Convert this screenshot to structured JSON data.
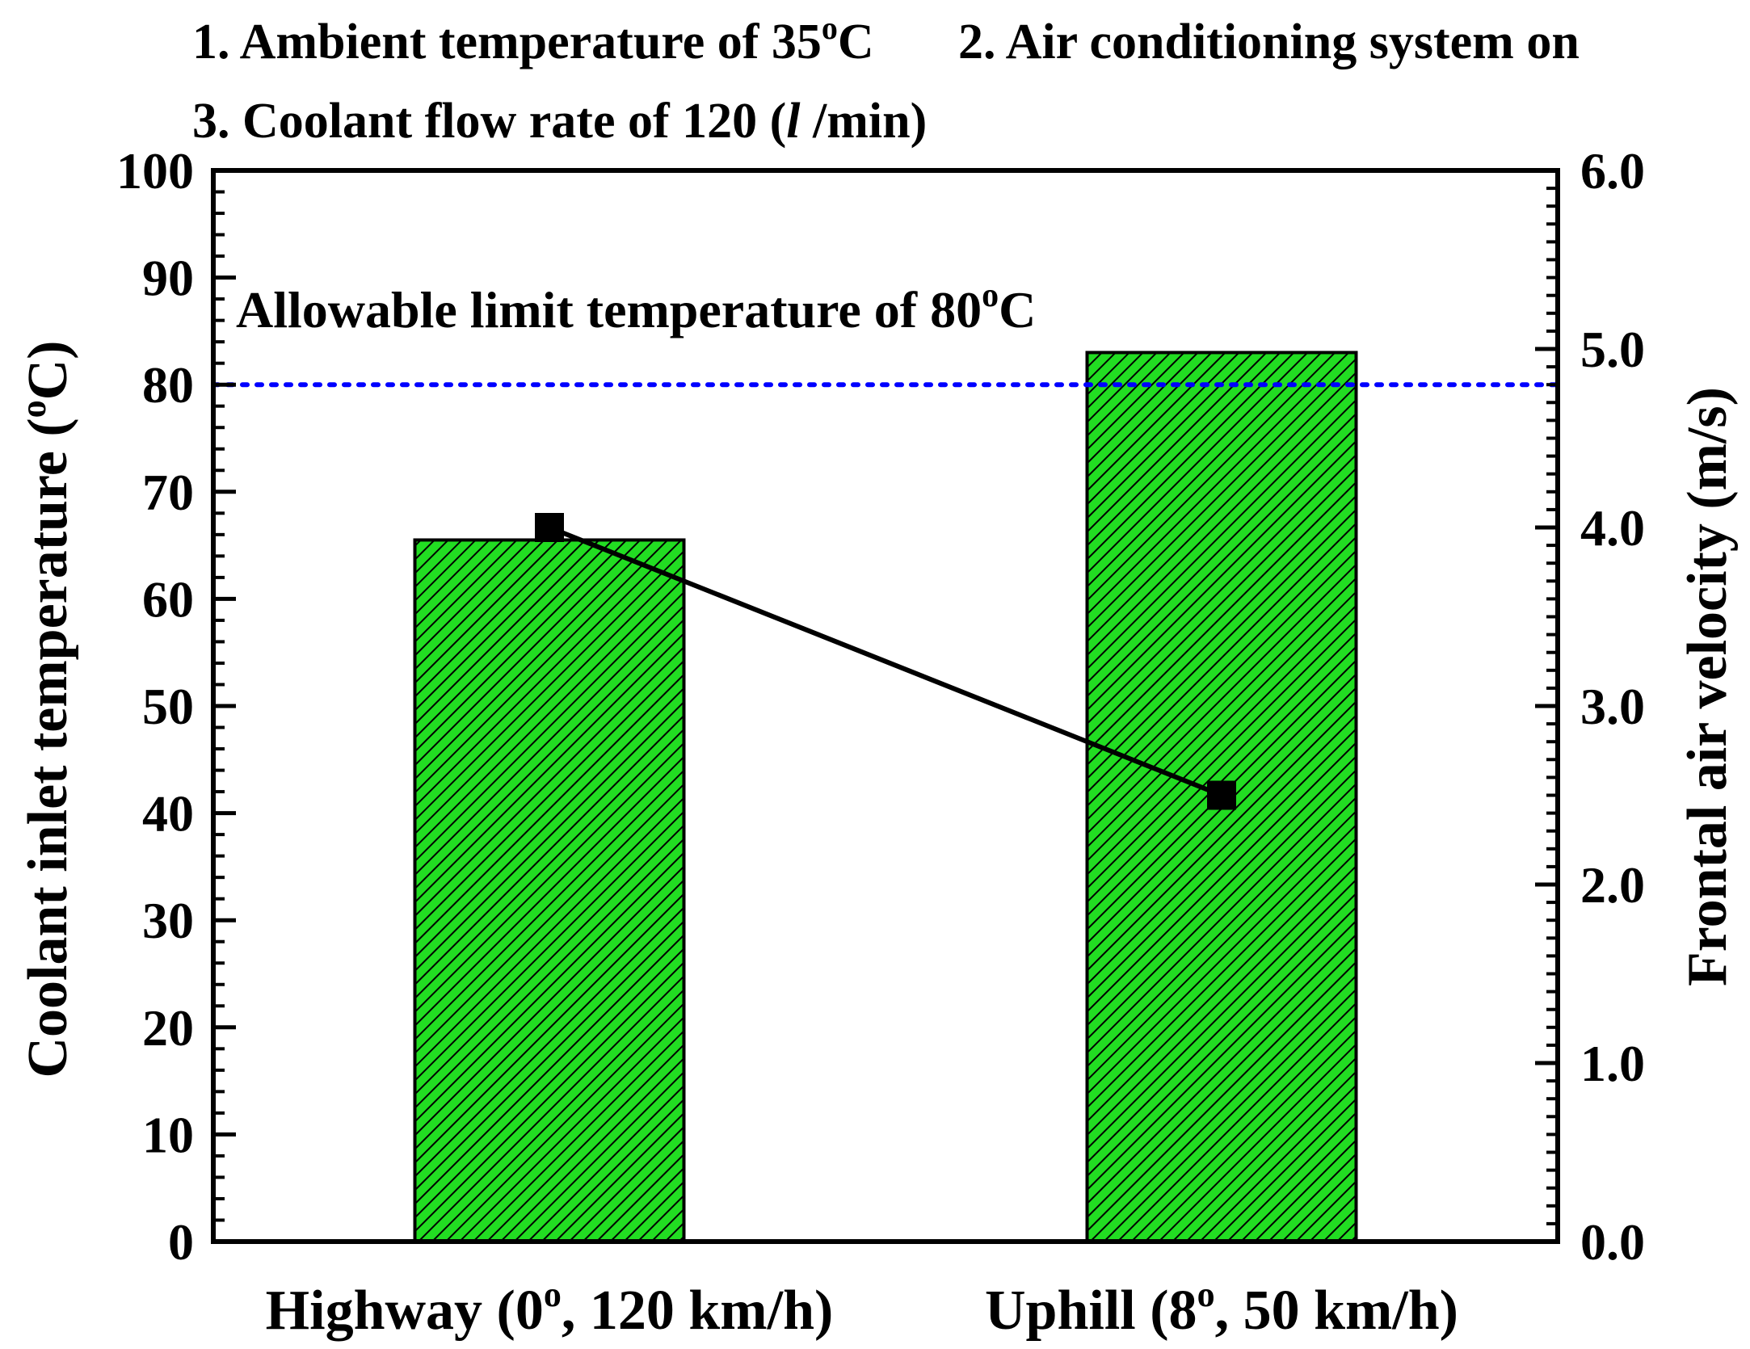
{
  "conditions": {
    "line1_a": "1. Ambient temperature of 35",
    "line1_a_sup": "o",
    "line1_a_tail": "C",
    "line1_b": "2. Air conditioning system on",
    "line2_a": "3. Coolant flow rate of 120 (",
    "line2_italic": "l",
    "line2_tail": " /min)"
  },
  "limit_label": {
    "text": "Allowable limit temperature of 80",
    "sup": "o",
    "tail": "C"
  },
  "colors": {
    "bar_fill": "#22dd22",
    "bar_hatch": "#000000",
    "limit_line": "#0000ff",
    "series_line": "#000000"
  },
  "chart_data": {
    "type": "bar",
    "categories": [
      "Highway (0",
      "Uphill (8"
    ],
    "category_sup": [
      "o",
      "o"
    ],
    "category_tail": [
      ", 120 km/h)",
      ", 50 km/h)"
    ],
    "series": [
      {
        "values": [
          65.5,
          83.0
        ],
        "axis": "left",
        "style": "hatched-bar"
      },
      {
        "values": [
          4.0,
          2.5
        ],
        "axis": "right",
        "style": "line-square-markers"
      }
    ],
    "reference_line": {
      "value": 80,
      "axis": "left",
      "style": "dotted"
    },
    "ylabel_left": {
      "text": "Coolant inlet temperature (",
      "sup": "o",
      "tail": "C)"
    },
    "ylabel_right": "Frontal air velocity (m/s)",
    "ylim_left": [
      0,
      100
    ],
    "ylim_right": [
      0.0,
      6.0
    ],
    "yticks_left": [
      "0",
      "10",
      "20",
      "30",
      "40",
      "50",
      "60",
      "70",
      "80",
      "90",
      "100"
    ],
    "yticks_right": [
      "0.0",
      "1.0",
      "2.0",
      "3.0",
      "4.0",
      "5.0",
      "6.0"
    ],
    "grid": false
  }
}
